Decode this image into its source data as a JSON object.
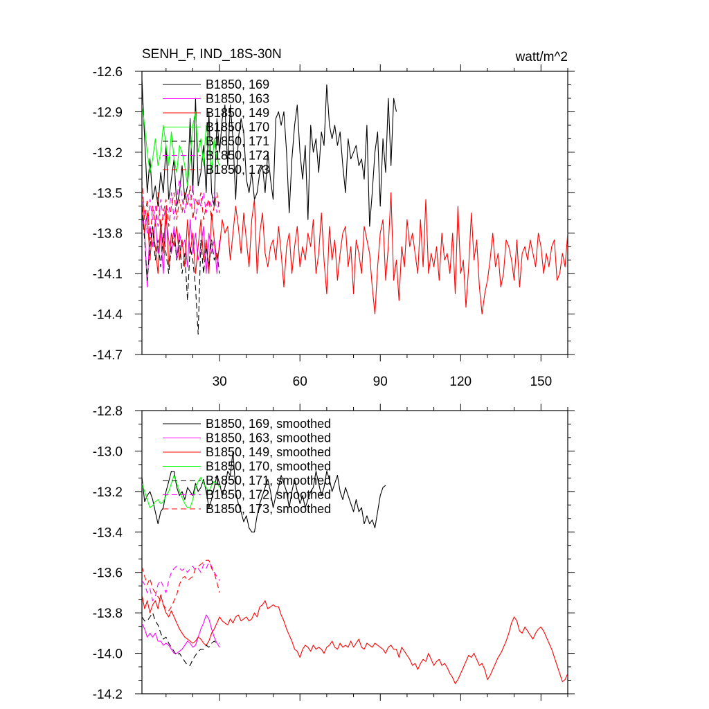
{
  "figure": {
    "title_left": "SENH_F, IND_18S-30N",
    "title_right": "watt/m^2"
  },
  "chart_data": [
    {
      "type": "line",
      "title": "SENH_F, IND_18S-30N",
      "units": "watt/m^2",
      "xlim": [
        1,
        160
      ],
      "ylim": [
        -14.7,
        -12.6
      ],
      "xticks": [
        30,
        60,
        90,
        120,
        150
      ],
      "xtick_labels": [
        "30",
        "60",
        "90",
        "120",
        "150"
      ],
      "yticks": [
        -12.6,
        -12.9,
        -13.2,
        -13.5,
        -13.8,
        -14.1,
        -14.4,
        -14.7
      ],
      "ytick_labels": [
        "-12.6",
        "-12.9",
        "-13.2",
        "-13.5",
        "-13.8",
        "-14.1",
        "-14.4",
        "-14.7"
      ],
      "legend_position": "top-left",
      "series": [
        {
          "name": "B1850, 169",
          "color": "#000000",
          "dash": "solid",
          "x_start": 1,
          "values": [
            -12.66,
            -13.1,
            -13.5,
            -13.25,
            -13.55,
            -13.45,
            -13.6,
            -13.35,
            -13.5,
            -13.15,
            -13.55,
            -13.4,
            -13.25,
            -13.6,
            -13.5,
            -13.3,
            -13.55,
            -13.45,
            -12.95,
            -13.5,
            -12.8,
            -13.45,
            -13.35,
            -13.15,
            -13.5,
            -12.9,
            -13.5,
            -13.6,
            -12.95,
            -13.2,
            -12.95,
            -12.85,
            -13.3,
            -12.85,
            -13.1,
            -13.55,
            -13.1,
            -12.95,
            -13.05,
            -13.4,
            -13.5,
            -13.35,
            -13.55,
            -13.5,
            -13.35,
            -13.3,
            -13.5,
            -13.2,
            -13.4,
            -13.55,
            -12.95,
            -12.9,
            -13.0,
            -12.9,
            -13.2,
            -13.65,
            -13.25,
            -13.0,
            -12.85,
            -13.2,
            -13.4,
            -13.15,
            -13.7,
            -13.0,
            -13.2,
            -13.1,
            -13.35,
            -13.05,
            -13.15,
            -12.7,
            -13.0,
            -13.1,
            -13.0,
            -13.15,
            -13.05,
            -13.3,
            -13.5,
            -13.1,
            -13.25,
            -13.2,
            -13.15,
            -13.3,
            -13.25,
            -13.4,
            -13.0,
            -13.75,
            -13.5,
            -13.2,
            -13.05,
            -13.6,
            -13.1,
            -13.35,
            -12.8,
            -13.3,
            -12.8,
            -12.9
          ]
        },
        {
          "name": "B1850, 163",
          "color": "#ff00ff",
          "dash": "solid",
          "x_start": 1,
          "values": [
            -13.65,
            -13.8,
            -14.2,
            -13.75,
            -13.9,
            -13.7,
            -13.95,
            -13.8,
            -14.1,
            -13.7,
            -13.85,
            -13.95,
            -13.75,
            -14.0,
            -13.8,
            -13.9,
            -13.85,
            -14.05,
            -13.7,
            -13.95,
            -13.8,
            -14.0,
            -13.9,
            -13.75,
            -14.1,
            -13.8,
            -13.95,
            -13.85,
            -14.1,
            -13.85
          ]
        },
        {
          "name": "B1850, 149",
          "color": "#ff0000",
          "dash": "solid",
          "x_start": 1,
          "values": [
            -13.55,
            -13.8,
            -13.65,
            -14.0,
            -13.75,
            -13.9,
            -14.1,
            -13.7,
            -13.95,
            -13.6,
            -14.05,
            -13.8,
            -13.9,
            -13.75,
            -14.0,
            -13.85,
            -14.05,
            -13.7,
            -13.95,
            -13.8,
            -14.1,
            -13.9,
            -13.7,
            -14.0,
            -13.85,
            -14.1,
            -13.65,
            -13.85,
            -14.0,
            -13.9,
            -13.7,
            -13.8,
            -13.75,
            -14.0,
            -13.8,
            -13.6,
            -13.75,
            -13.95,
            -13.65,
            -13.85,
            -14.05,
            -13.7,
            -13.55,
            -14.1,
            -13.8,
            -13.65,
            -13.95,
            -14.05,
            -13.9,
            -13.85,
            -14.0,
            -13.75,
            -13.95,
            -14.2,
            -13.9,
            -13.8,
            -14.1,
            -13.9,
            -13.75,
            -14.05,
            -13.9,
            -14.0,
            -13.8,
            -13.9,
            -13.7,
            -14.1,
            -13.95,
            -13.65,
            -14.0,
            -14.25,
            -13.75,
            -14.0,
            -13.85,
            -14.15,
            -13.95,
            -13.8,
            -13.75,
            -14.05,
            -13.9,
            -14.25,
            -13.85,
            -13.95,
            -14.1,
            -13.75,
            -13.85,
            -13.95,
            -14.2,
            -14.4,
            -14.05,
            -13.8,
            -13.7,
            -14.15,
            -13.9,
            -13.5,
            -14.15,
            -14.0,
            -14.3,
            -13.9,
            -14.05,
            -13.7,
            -13.9,
            -13.8,
            -13.95,
            -14.1,
            -13.7,
            -14.05,
            -13.55,
            -14.1,
            -13.95,
            -14.05,
            -13.9,
            -14.15,
            -13.8,
            -14.0,
            -13.95,
            -14.1,
            -13.8,
            -14.25,
            -13.6,
            -14.1,
            -14.0,
            -14.35,
            -14.05,
            -13.65,
            -14.0,
            -13.85,
            -14.2,
            -14.4,
            -14.25,
            -14.15,
            -14.0,
            -13.8,
            -14.05,
            -13.95,
            -14.2,
            -14.1,
            -13.85,
            -13.9,
            -14.0,
            -14.15,
            -13.85,
            -14.2,
            -13.95,
            -13.9,
            -14.0,
            -13.85,
            -13.95,
            -14.05,
            -13.8,
            -13.9,
            -14.1,
            -13.95,
            -14.05,
            -13.9,
            -13.85,
            -14.15,
            -14.1,
            -13.95,
            -14.05,
            -13.8,
            -13.85,
            -14.15
          ]
        },
        {
          "name": "B1850, 170",
          "color": "#00ff00",
          "dash": "solid",
          "x_start": 1,
          "values": [
            -12.85,
            -13.0,
            -13.2,
            -13.35,
            -13.25,
            -13.1,
            -13.3,
            -13.2,
            -13.0,
            -13.15,
            -13.3,
            -13.05,
            -13.25,
            -13.35,
            -13.15,
            -13.2,
            -13.3,
            -13.45,
            -13.25,
            -13.0,
            -12.9,
            -13.2,
            -13.1,
            -13.3,
            -13.0,
            -13.15,
            -13.35,
            -13.1,
            -13.25,
            -13.3
          ]
        },
        {
          "name": "B1850, 171",
          "color": "#000000",
          "dash": "dash",
          "x_start": 1,
          "values": [
            -13.6,
            -13.85,
            -14.15,
            -13.9,
            -13.75,
            -14.0,
            -13.85,
            -14.05,
            -13.8,
            -13.95,
            -14.1,
            -13.9,
            -13.8,
            -14.0,
            -13.85,
            -14.1,
            -13.95,
            -14.3,
            -13.9,
            -14.0,
            -14.2,
            -14.55,
            -13.85,
            -14.1,
            -13.9,
            -14.05,
            -13.85,
            -14.0,
            -13.95,
            -14.1
          ]
        },
        {
          "name": "B1850, 172",
          "color": "#ff00ff",
          "dash": "dash",
          "x_start": 1,
          "values": [
            -13.5,
            -13.65,
            -13.8,
            -13.55,
            -13.7,
            -13.6,
            -13.75,
            -13.55,
            -13.7,
            -13.6,
            -13.65,
            -13.5,
            -13.7,
            -13.55,
            -13.4,
            -13.55,
            -13.65,
            -13.5,
            -13.6,
            -13.45,
            -13.7,
            -13.55,
            -13.6,
            -13.5,
            -13.65,
            -13.55,
            -13.6,
            -13.5,
            -13.65,
            -13.55
          ]
        },
        {
          "name": "B1850, 173",
          "color": "#ff0000",
          "dash": "dash",
          "x_start": 1,
          "values": [
            -13.4,
            -13.7,
            -13.55,
            -13.85,
            -13.6,
            -13.75,
            -13.5,
            -13.8,
            -13.65,
            -13.55,
            -13.75,
            -13.6,
            -13.5,
            -13.7,
            -13.55,
            -13.65,
            -13.5,
            -13.6,
            -13.45,
            -13.7,
            -13.55,
            -13.6,
            -13.5,
            -13.7,
            -13.6,
            -13.55,
            -13.7,
            -13.6,
            -13.5,
            -13.65
          ]
        }
      ]
    },
    {
      "type": "line",
      "xlim": [
        1,
        160
      ],
      "ylim": [
        -14.2,
        -12.8
      ],
      "xticks": [
        30,
        60,
        90,
        120,
        150
      ],
      "xtick_labels": [
        "",
        "",
        "",
        "",
        ""
      ],
      "yticks": [
        -12.8,
        -13.0,
        -13.2,
        -13.4,
        -13.6,
        -13.8,
        -14.0,
        -14.2
      ],
      "ytick_labels": [
        "-12.8",
        "-13.0",
        "-13.2",
        "-13.4",
        "-13.6",
        "-13.8",
        "-14.0",
        "-14.2"
      ],
      "legend_position": "top-left",
      "series": [
        {
          "name": "B1850, 169, smoothed",
          "color": "#000000",
          "dash": "solid",
          "x_start": 1,
          "values": [
            -13.13,
            -13.25,
            -13.22,
            -13.2,
            -13.24,
            -13.3,
            -13.36,
            -13.3,
            -13.28,
            -13.2,
            -13.15,
            -13.1,
            -13.1,
            -13.18,
            -13.22,
            -13.2,
            -13.24,
            -13.18,
            -13.2,
            -13.22,
            -13.16,
            -13.2,
            -13.18,
            -13.14,
            -13.2,
            -13.28,
            -13.24,
            -13.18,
            -13.12,
            -13.16,
            -13.22,
            -13.18,
            -13.1,
            -13.12,
            -13.0,
            -13.2,
            -13.26,
            -13.3,
            -13.35,
            -13.32,
            -13.38,
            -13.4,
            -13.4,
            -13.32,
            -13.26,
            -13.22,
            -13.18,
            -13.14,
            -13.2,
            -13.28,
            -13.22,
            -13.18,
            -13.12,
            -13.16,
            -13.2,
            -13.28,
            -13.2,
            -13.14,
            -13.2,
            -13.26,
            -13.22,
            -13.28,
            -13.24,
            -13.2,
            -13.18,
            -13.1,
            -13.16,
            -13.22,
            -13.18,
            -13.1,
            -13.14,
            -13.2,
            -13.16,
            -13.12,
            -13.2,
            -13.24,
            -13.18,
            -13.22,
            -13.26,
            -13.3,
            -13.24,
            -13.3,
            -13.28,
            -13.36,
            -13.32,
            -13.36,
            -13.34,
            -13.38,
            -13.3,
            -13.22,
            -13.18,
            -13.17
          ]
        },
        {
          "name": "B1850, 163, smoothed",
          "color": "#ff00ff",
          "dash": "solid",
          "x_start": 1,
          "values": [
            -13.85,
            -13.88,
            -13.92,
            -13.9,
            -13.92,
            -13.9,
            -13.94,
            -13.94,
            -13.96,
            -13.95,
            -13.96,
            -13.98,
            -14.0,
            -14.0,
            -13.99,
            -13.98,
            -13.96,
            -13.94,
            -13.95,
            -13.97,
            -13.96,
            -13.92,
            -13.88,
            -13.85,
            -13.81,
            -13.83,
            -13.88,
            -13.92,
            -13.95,
            -13.97
          ]
        },
        {
          "name": "B1850, 149, smoothed",
          "color": "#ff0000",
          "dash": "solid",
          "x_start": 1,
          "values": [
            -13.71,
            -13.78,
            -13.74,
            -13.8,
            -13.76,
            -13.74,
            -13.78,
            -13.71,
            -13.76,
            -13.8,
            -13.82,
            -13.79,
            -13.82,
            -13.85,
            -13.88,
            -13.9,
            -13.92,
            -13.93,
            -13.94,
            -13.95,
            -13.94,
            -13.92,
            -13.93,
            -13.95,
            -13.96,
            -13.94,
            -13.9,
            -13.88,
            -13.85,
            -13.82,
            -13.84,
            -13.85,
            -13.86,
            -13.83,
            -13.85,
            -13.82,
            -13.81,
            -13.84,
            -13.83,
            -13.82,
            -13.84,
            -13.83,
            -13.8,
            -13.82,
            -13.77,
            -13.76,
            -13.74,
            -13.78,
            -13.77,
            -13.76,
            -13.77,
            -13.77,
            -13.81,
            -13.84,
            -13.88,
            -13.91,
            -13.94,
            -13.98,
            -13.99,
            -14.02,
            -13.98,
            -13.96,
            -13.97,
            -13.99,
            -13.96,
            -13.98,
            -13.97,
            -13.98,
            -14.0,
            -13.97,
            -13.96,
            -13.94,
            -13.97,
            -13.98,
            -13.95,
            -13.97,
            -13.96,
            -13.97,
            -13.94,
            -13.97,
            -13.95,
            -13.93,
            -13.97,
            -13.98,
            -13.95,
            -13.96,
            -13.97,
            -13.95,
            -13.96,
            -13.97,
            -13.98,
            -14.0,
            -13.97,
            -13.96,
            -13.98,
            -13.98,
            -14.02,
            -13.97,
            -13.99,
            -14.01,
            -14.03,
            -14.06,
            -14.05,
            -14.08,
            -14.05,
            -14.03,
            -14.04,
            -14.0,
            -14.03,
            -14.06,
            -14.04,
            -14.03,
            -14.06,
            -14.05,
            -14.07,
            -14.1,
            -14.12,
            -14.15,
            -14.13,
            -14.1,
            -14.07,
            -14.04,
            -14.01,
            -14.02,
            -14.0,
            -14.03,
            -14.06,
            -14.05,
            -14.08,
            -14.13,
            -14.11,
            -14.08,
            -14.05,
            -14.02,
            -14.0,
            -13.97,
            -13.94,
            -13.9,
            -13.85,
            -13.82,
            -13.84,
            -13.89,
            -13.9,
            -13.87,
            -13.89,
            -13.91,
            -13.93,
            -13.9,
            -13.88,
            -13.87,
            -13.89,
            -13.92,
            -13.95,
            -13.98,
            -14.02,
            -14.06,
            -14.1,
            -14.14,
            -14.13,
            -14.1
          ]
        },
        {
          "name": "B1850, 170, smoothed",
          "color": "#00ff00",
          "dash": "solid",
          "x_start": 1,
          "values": [
            -13.16,
            -13.2,
            -13.24,
            -13.28,
            -13.27,
            -13.25,
            -13.24,
            -13.26,
            -13.25,
            -13.22,
            -13.2,
            -13.16,
            -13.12,
            -13.16,
            -13.2,
            -13.23,
            -13.26,
            -13.28,
            -13.28,
            -13.24,
            -13.18,
            -13.15,
            -13.13,
            -13.16,
            -13.18,
            -13.2,
            -13.17,
            -13.15,
            -13.16,
            -13.18
          ]
        },
        {
          "name": "B1850, 171, smoothed",
          "color": "#000000",
          "dash": "dash",
          "x_start": 1,
          "values": [
            -13.82,
            -13.84,
            -13.84,
            -13.82,
            -13.8,
            -13.84,
            -13.86,
            -13.9,
            -13.93,
            -13.92,
            -13.95,
            -13.97,
            -13.99,
            -14.01,
            -14.0,
            -14.02,
            -14.04,
            -14.06,
            -14.06,
            -14.03,
            -14.01,
            -13.99,
            -13.98,
            -13.98,
            -13.96,
            -13.97,
            -13.95,
            -13.94,
            -13.95,
            -13.95
          ]
        },
        {
          "name": "B1850, 172, smoothed",
          "color": "#ff00ff",
          "dash": "dash",
          "x_start": 1,
          "values": [
            -13.64,
            -13.66,
            -13.7,
            -13.68,
            -13.74,
            -13.72,
            -13.66,
            -13.64,
            -13.67,
            -13.7,
            -13.64,
            -13.6,
            -13.58,
            -13.57,
            -13.58,
            -13.59,
            -13.58,
            -13.6,
            -13.58,
            -13.57,
            -13.59,
            -13.58,
            -13.6,
            -13.56,
            -13.58,
            -13.55,
            -13.57,
            -13.6,
            -13.62,
            -13.64
          ]
        },
        {
          "name": "B1850, 173, smoothed",
          "color": "#ff0000",
          "dash": "dash",
          "x_start": 1,
          "values": [
            -13.57,
            -13.62,
            -13.66,
            -13.63,
            -13.68,
            -13.7,
            -13.72,
            -13.74,
            -13.76,
            -13.78,
            -13.79,
            -13.77,
            -13.74,
            -13.71,
            -13.66,
            -13.63,
            -13.62,
            -13.64,
            -13.63,
            -13.62,
            -13.58,
            -13.57,
            -13.56,
            -13.55,
            -13.54,
            -13.54,
            -13.58,
            -13.6,
            -13.65,
            -13.7
          ]
        }
      ]
    }
  ]
}
